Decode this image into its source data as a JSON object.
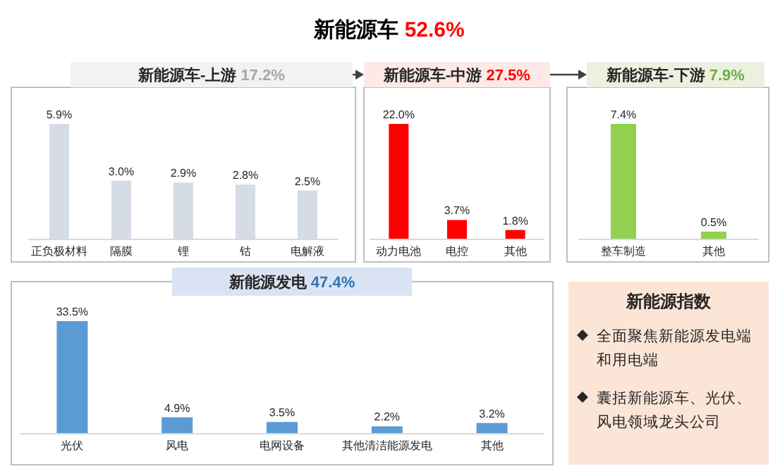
{
  "chart_data": [
    {
      "type": "other",
      "title": "新能源车 52.6%"
    },
    {
      "type": "bar",
      "title": "新能源车-上游 17.2%",
      "categories": [
        "正负极材料",
        "隔膜",
        "锂",
        "钴",
        "电解液"
      ],
      "series": [
        {
          "color": "#d6dce5",
          "values": [
            5.9,
            3.0,
            2.9,
            2.8,
            2.5
          ],
          "value_labels": [
            "5.9%",
            "3.0%",
            "2.9%",
            "2.8%",
            "2.5%"
          ]
        }
      ]
    },
    {
      "type": "bar",
      "title": "新能源车-中游 27.5%",
      "categories": [
        "动力电池",
        "电控",
        "其他"
      ],
      "series": [
        {
          "color": "#ff0000",
          "values": [
            22.0,
            3.7,
            1.8
          ],
          "value_labels": [
            "22.0%",
            "3.7%",
            "1.8%"
          ]
        }
      ]
    },
    {
      "type": "bar",
      "title": "新能源车-下游 7.9%",
      "categories": [
        "整车制造",
        "其他"
      ],
      "series": [
        {
          "color": "#92d050",
          "values": [
            7.4,
            0.5
          ],
          "value_labels": [
            "7.4%",
            "0.5%"
          ]
        }
      ]
    },
    {
      "type": "bar",
      "title": "新能源发电 47.4%",
      "categories": [
        "光伏",
        "风电",
        "电网设备",
        "其他清洁能源发电",
        "其他"
      ],
      "series": [
        {
          "color": "#5b9bd5",
          "values": [
            33.5,
            4.9,
            3.5,
            2.2,
            3.2
          ],
          "value_labels": [
            "33.5%",
            "4.9%",
            "3.5%",
            "2.2%",
            "3.2%"
          ]
        }
      ]
    },
    {
      "type": "other",
      "title": "新能源指数",
      "annotations": [
        "全面聚焦新能源发电端和用电端",
        "囊括新能源车、光伏、风电领域龙头公司"
      ]
    }
  ]
}
